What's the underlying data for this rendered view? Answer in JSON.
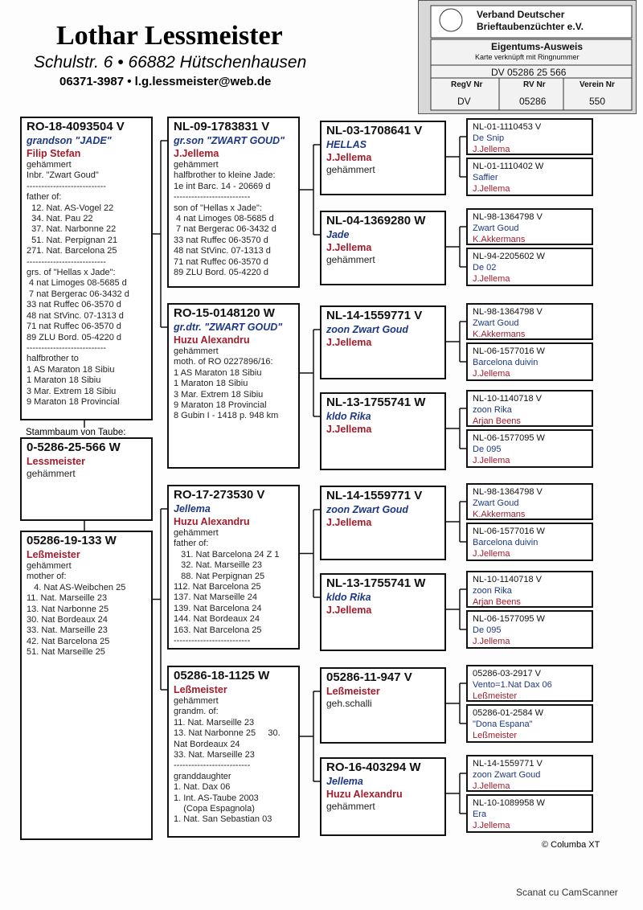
{
  "header": {
    "name": "Lothar Lessmeister",
    "address": "Schulstr. 6 • 66882 Hütschenhausen",
    "contact": "06371-3987 • l.g.lessmeister@web.de"
  },
  "card": {
    "org_line1": "Verband Deutscher",
    "org_line2": "Brieftaubenzüchter e.V.",
    "title": "Eigentums-Ausweis",
    "subtitle": "Karte verknüpft mit Ringnummer",
    "ring": "DV 05286 25 566",
    "labels": [
      "RegV Nr",
      "RV Nr",
      "Verein Nr"
    ],
    "values": [
      "DV",
      "05286",
      "550"
    ]
  },
  "pedigree": {
    "subject": {
      "label": "Stammbaum von Taube:",
      "ring": "0-5286-25-566 W",
      "breeder": "Lessmeister",
      "lines": [
        "gehämmert"
      ]
    },
    "parents": [
      {
        "ring": "RO-18-4093504 V",
        "name": "grandson \"JADE\"",
        "breeder": "Filip Stefan",
        "lines": [
          "gehämmert",
          "Inbr. \"Zwart Goud\"",
          "---------------------------",
          "father of:",
          "  12. Nat. AS-Vogel 22",
          "  34. Nat. Pau 22",
          "  37. Nat. Narbonne 22",
          "  51. Nat. Perpignan 21",
          "271. Nat. Barcelona 25",
          "---------------------------",
          "grs. of \"Hellas x Jade\":",
          " 4 nat Limoges 08-5685 d",
          " 7 nat Bergerac 06-3432 d",
          "33 nat Ruffec 06-3570 d",
          "48 nat StVinc. 07-1313 d",
          "71 nat Ruffec 06-3570 d",
          "89 ZLU Bord. 05-4220 d",
          "---------------------------",
          "halfbrother to",
          "1 AS Maraton 18 Sibiu",
          "1 Maraton 18 Sibiu",
          "3 Mar. Extrem 18 Sibiu",
          "9 Maraton 18 Provincial"
        ]
      },
      {
        "ring": "05286-19-133 W",
        "breeder": "Leßmeister",
        "lines": [
          "gehämmert",
          "mother of:",
          "   4. Nat AS-Weibchen 25",
          "11. Nat. Marseille 23",
          "13. Nat Narbonne 25",
          "30. Nat Bordeaux 24",
          "33. Nat. Marseille 23",
          "42. Nat Barcelona 25",
          "51. Nat Marseille 25"
        ]
      }
    ],
    "grandparents": [
      {
        "ring": "NL-09-1783831 V",
        "name": "gr.son \"ZWART GOUD\"",
        "breeder": "J.Jellema",
        "lines": [
          "gehämmert",
          "halfbrother to kleine Jade:",
          "1e int Barc. 14 - 20669 d",
          "--------------------------",
          "son of \"Hellas x Jade\":",
          " 4 nat Limoges 08-5685 d",
          " 7 nat Bergerac 06-3432 d",
          "33 nat Ruffec 06-3570 d",
          "48 nat StVinc. 07-1313 d",
          "71 nat Ruffec 06-3570 d",
          "89 ZLU Bord. 05-4220 d"
        ]
      },
      {
        "ring": "RO-15-0148120 W",
        "name": "gr.dtr. \"ZWART GOUD\"",
        "breeder": "Huzu Alexandru",
        "lines": [
          "gehämmert",
          "moth. of RO 0227896/16:",
          "1 AS Maraton 18 Sibiu",
          "1 Maraton 18 Sibiu",
          "3 Mar. Extrem 18 Sibiu",
          "9 Maraton 18 Provincial",
          "8 Gubin I - 1418 p. 948 km"
        ]
      },
      {
        "ring": "RO-17-273530 V",
        "name": "Jellema",
        "breeder": "Huzu Alexandru",
        "lines": [
          "gehämmert",
          "father of:",
          "   31. Nat Barcelona 24 Z 1",
          "   32. Nat. Marseille 23",
          "   88. Nat Perpignan 25",
          "112. Nat Barcelona 25",
          "137. Nat Marseille 24",
          "139. Nat Barcelona 24",
          "144. Nat Bordeaux 24",
          "163. Nat Barcelona 25",
          "--------------------------"
        ]
      },
      {
        "ring": "05286-18-1125 W",
        "breeder": "Leßmeister",
        "lines": [
          "gehämmert",
          "grandm. of:",
          "11. Nat. Marseille 23",
          "13. Nat Narbonne 25     30.",
          "Nat Bordeaux 24",
          "33. Nat. Marseille 23",
          "--------------------------",
          "granddaughter",
          "1. Nat. Dax 06",
          "1. Int. AS-Taube 2003",
          "    (Copa Espagnola)",
          "1. Nat. San Sebastian 03"
        ]
      }
    ],
    "great_grandparents": [
      {
        "ring": "NL-03-1708641 V",
        "name": "HELLAS",
        "breeder": "J.Jellema",
        "lines": [
          "gehämmert"
        ]
      },
      {
        "ring": "NL-04-1369280 W",
        "name": "Jade",
        "breeder": "J.Jellema",
        "lines": [
          "gehämmert"
        ]
      },
      {
        "ring": "NL-14-1559771 V",
        "name": "zoon Zwart Goud",
        "breeder": "J.Jellema"
      },
      {
        "ring": "NL-13-1755741 W",
        "name": "kldo Rika",
        "breeder": "J.Jellema"
      },
      {
        "ring": "NL-14-1559771 V",
        "name": "zoon Zwart Goud",
        "breeder": "J.Jellema"
      },
      {
        "ring": "NL-13-1755741 W",
        "name": "kldo Rika",
        "breeder": "J.Jellema"
      },
      {
        "ring": "05286-11-947 V",
        "breeder": "Leßmeister",
        "lines": [
          "geh.schalli"
        ]
      },
      {
        "ring": "RO-16-403294 W",
        "name": "Jellema",
        "breeder": "Huzu Alexandru",
        "lines": [
          "gehämmert"
        ]
      }
    ],
    "gg_grandparents": [
      {
        "ring": "NL-01-1110453 V",
        "name": "De Snip",
        "breeder": "J.Jellema"
      },
      {
        "ring": "NL-01-1110402 W",
        "name": "Saffier",
        "breeder": "J.Jellema"
      },
      {
        "ring": "NL-98-1364798 V",
        "name": "Zwart Goud",
        "breeder": "K.Akkermans"
      },
      {
        "ring": "NL-94-2205602 W",
        "name": "De 02",
        "breeder": "J.Jellema"
      },
      {
        "ring": "NL-98-1364798 V",
        "name": "Zwart Goud",
        "breeder": "K.Akkermans"
      },
      {
        "ring": "NL-06-1577016 W",
        "name": "Barcelona duivin",
        "breeder": "J.Jellema"
      },
      {
        "ring": "NL-10-1140718 V",
        "name": "zoon Rika",
        "breeder": "Arjan Beens"
      },
      {
        "ring": "NL-06-1577095 W",
        "name": "De 095",
        "breeder": "J.Jellema"
      },
      {
        "ring": "NL-98-1364798 V",
        "name": "Zwart Goud",
        "breeder": "K.Akkermans"
      },
      {
        "ring": "NL-06-1577016 W",
        "name": "Barcelona duivin",
        "breeder": "J.Jellema"
      },
      {
        "ring": "NL-10-1140718 V",
        "name": "zoon Rika",
        "breeder": "Arjan Beens"
      },
      {
        "ring": "NL-06-1577095 W",
        "name": "De 095",
        "breeder": "J.Jellema"
      },
      {
        "ring": "05286-03-2917 V",
        "name": "Vento=1.Nat Dax 06",
        "breeder": "Leßmeister"
      },
      {
        "ring": "05286-01-2584 W",
        "name": "\"Dona Espana\"",
        "breeder": "Leßmeister"
      },
      {
        "ring": "NL-14-1559771 V",
        "name": "zoon Zwart Goud",
        "breeder": "J.Jellema"
      },
      {
        "ring": "NL-10-1089958 W",
        "name": "Era",
        "breeder": "J.Jellema"
      }
    ]
  },
  "footer": {
    "copyright": "© Columba XT",
    "scanner": "Scanat cu CamScanner"
  }
}
